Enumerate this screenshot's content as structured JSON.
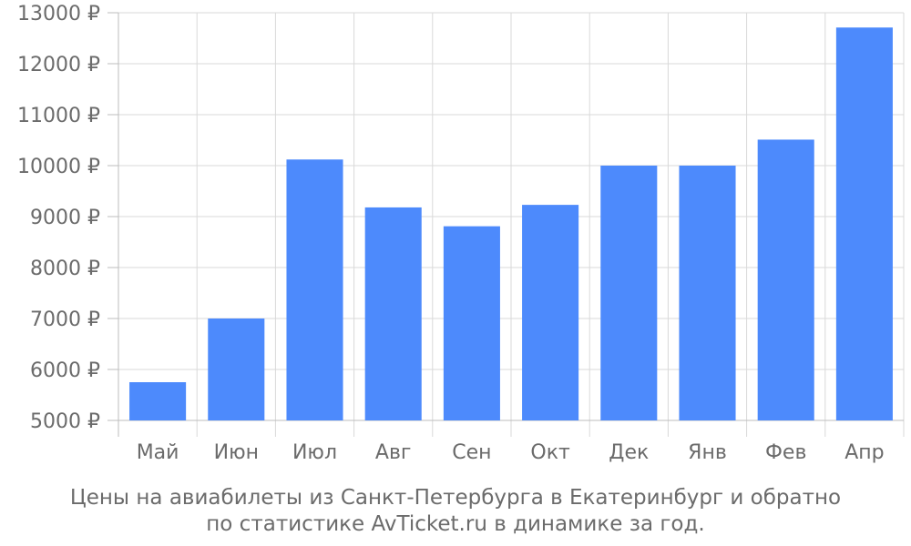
{
  "chart_data": {
    "type": "bar",
    "categories": [
      "Май",
      "Июн",
      "Июл",
      "Авг",
      "Сен",
      "Окт",
      "Дек",
      "Янв",
      "Фев",
      "Апр"
    ],
    "values": [
      5750,
      7000,
      10120,
      9180,
      8810,
      9230,
      10000,
      10000,
      10510,
      12710
    ],
    "ylim": [
      5000,
      13000
    ],
    "yticks": [
      5000,
      6000,
      7000,
      8000,
      9000,
      10000,
      11000,
      12000,
      13000
    ],
    "ytick_suffix": " ₽",
    "grid": true,
    "bar_color": "#4d8afc",
    "grid_color": "#d9d9d9",
    "axis_color": "#bdbdbd",
    "text_color": "#6b6b6b"
  },
  "caption": {
    "line1": "Цены на авиабилеты из Санкт-Петербурга в Екатеринбург и обратно",
    "line2": "по статистике AvTicket.ru в динамике за год."
  }
}
